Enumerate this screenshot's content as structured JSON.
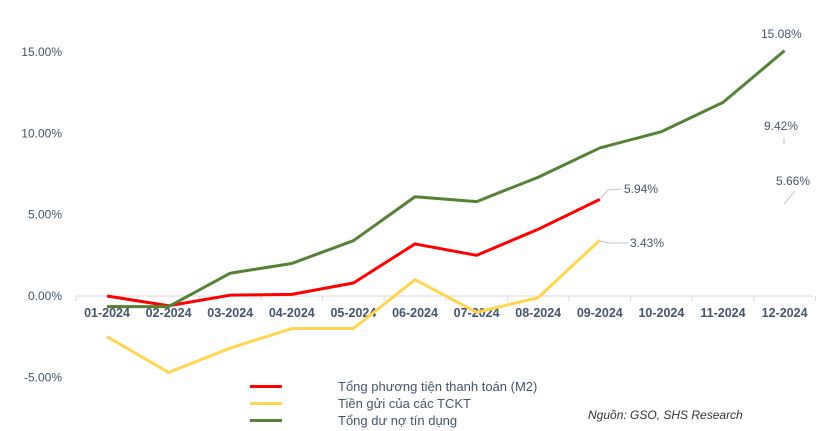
{
  "chart_data": {
    "type": "line",
    "categories": [
      "01-2024",
      "02-2024",
      "03-2024",
      "04-2024",
      "05-2024",
      "06-2024",
      "07-2024",
      "08-2024",
      "09-2024",
      "10-2024",
      "11-2024",
      "12-2024"
    ],
    "ylim": [
      -5,
      15
    ],
    "yticks": [
      "15.00%",
      "10.00%",
      "5.00%",
      "0.00%",
      "-5.00%"
    ],
    "ytick_values": [
      15,
      10,
      5,
      0,
      -5
    ],
    "grid": false,
    "legend_position": "bottom",
    "series": [
      {
        "name": "Tổng phương tiện thanh toán (M2)",
        "color": "#ff0000",
        "values": [
          0.0,
          -0.6,
          0.05,
          0.1,
          0.8,
          3.2,
          2.5,
          4.1,
          5.94,
          null,
          null,
          null
        ]
      },
      {
        "name": "Tiền gửi của các TCKT",
        "color": "#ffd54f",
        "values": [
          -2.5,
          -4.7,
          -3.2,
          -2.0,
          -2.0,
          1.0,
          -1.0,
          -0.1,
          3.43,
          null,
          null,
          null
        ]
      },
      {
        "name": "Tổng dư nợ tín dụng",
        "color": "#548235",
        "values": [
          -0.65,
          -0.65,
          1.4,
          2.0,
          3.4,
          6.1,
          5.8,
          7.3,
          9.1,
          10.1,
          11.9,
          15.08
        ]
      }
    ],
    "annotations": [
      "5.94%",
      "3.43%",
      "15.08%",
      "9.42%",
      "5.66%"
    ]
  },
  "source": "Nguồn: GSO, SHS Research"
}
